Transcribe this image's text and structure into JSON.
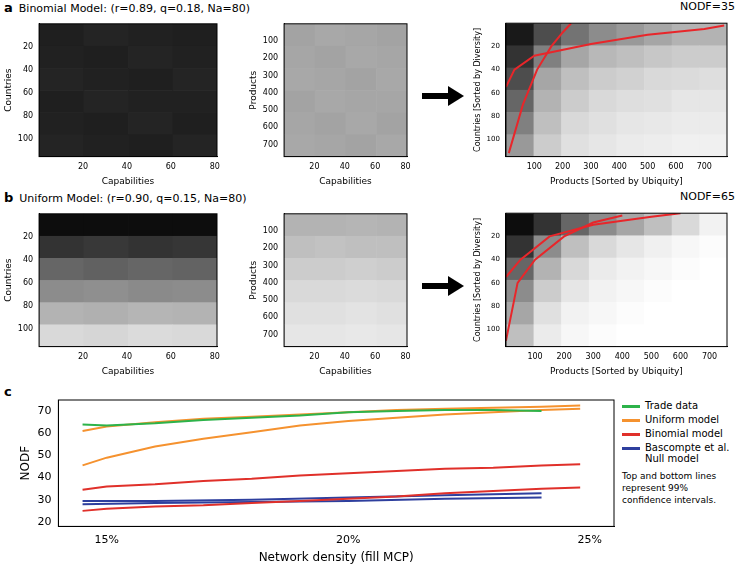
{
  "chart_data": [
    {
      "type": "heatmap",
      "panel_label": "a",
      "title": "Binomial Model: (r=0.89, q=0.18, Na=80)",
      "xlabel": "Capabilities",
      "ylabel": "Countries",
      "xlim": [
        0,
        81
      ],
      "xticks": [
        20,
        40,
        60,
        80
      ],
      "ylim": [
        0,
        115
      ],
      "yticks": [
        20,
        40,
        60,
        80,
        100
      ],
      "cells": [
        [
          0.88,
          0.86,
          0.87,
          0.88
        ],
        [
          0.87,
          0.88,
          0.86,
          0.87
        ],
        [
          0.86,
          0.87,
          0.88,
          0.86
        ],
        [
          0.88,
          0.86,
          0.87,
          0.87
        ],
        [
          0.87,
          0.88,
          0.86,
          0.88
        ],
        [
          0.86,
          0.87,
          0.88,
          0.86
        ]
      ]
    },
    {
      "type": "heatmap",
      "xlabel": "Capabilities",
      "ylabel": "Products",
      "xlim": [
        0,
        81
      ],
      "xticks": [
        20,
        40,
        60,
        80
      ],
      "ylim": [
        0,
        770
      ],
      "yticks": [
        100,
        200,
        300,
        400,
        500,
        600,
        700
      ],
      "cells": [
        [
          0.36,
          0.34,
          0.35,
          0.36
        ],
        [
          0.35,
          0.36,
          0.34,
          0.35
        ],
        [
          0.34,
          0.35,
          0.36,
          0.34
        ],
        [
          0.36,
          0.34,
          0.35,
          0.35
        ],
        [
          0.35,
          0.36,
          0.34,
          0.36
        ],
        [
          0.34,
          0.35,
          0.36,
          0.34
        ]
      ]
    },
    {
      "type": "heatmap",
      "title": "NODF=35",
      "xlabel": "Products [Sorted by Ubiquity]",
      "ylabel": "Countries [Sorted by Diversity]",
      "xlim": [
        0,
        780
      ],
      "xticks": [
        100,
        200,
        300,
        400,
        500,
        600,
        700
      ],
      "ylim": [
        0,
        115
      ],
      "yticks": [
        20,
        40,
        60,
        80,
        100
      ],
      "cells": [
        [
          0.9,
          0.7,
          0.55,
          0.45,
          0.4,
          0.35,
          0.3,
          0.3
        ],
        [
          0.8,
          0.5,
          0.35,
          0.28,
          0.25,
          0.22,
          0.2,
          0.2
        ],
        [
          0.7,
          0.35,
          0.25,
          0.2,
          0.18,
          0.15,
          0.14,
          0.13
        ],
        [
          0.6,
          0.3,
          0.2,
          0.15,
          0.13,
          0.12,
          0.1,
          0.1
        ],
        [
          0.5,
          0.25,
          0.15,
          0.12,
          0.1,
          0.09,
          0.08,
          0.08
        ],
        [
          0.4,
          0.2,
          0.12,
          0.1,
          0.08,
          0.07,
          0.06,
          0.06
        ]
      ],
      "series": [
        {
          "color": "#e8262a",
          "x": [
            10,
            60,
            110,
            160,
            200,
            230
          ],
          "values": [
            112,
            70,
            40,
            20,
            8,
            0
          ]
        },
        {
          "color": "#e8262a",
          "x": [
            0,
            30,
            100,
            300,
            500,
            700,
            770
          ],
          "values": [
            55,
            40,
            28,
            18,
            10,
            5,
            2
          ]
        }
      ]
    },
    {
      "type": "heatmap",
      "panel_label": "b",
      "title": "Uniform Model: (r=0.90, q=0.15, Na=80)",
      "xlabel": "Capabilities",
      "ylabel": "Countries",
      "xlim": [
        0,
        81
      ],
      "xticks": [
        20,
        40,
        60,
        80
      ],
      "ylim": [
        0,
        115
      ],
      "yticks": [
        20,
        40,
        60,
        80,
        100
      ],
      "cells": [
        [
          0.95,
          0.95,
          0.95,
          0.95
        ],
        [
          0.8,
          0.78,
          0.8,
          0.79
        ],
        [
          0.6,
          0.62,
          0.6,
          0.61
        ],
        [
          0.45,
          0.44,
          0.46,
          0.45
        ],
        [
          0.3,
          0.31,
          0.29,
          0.3
        ],
        [
          0.15,
          0.16,
          0.14,
          0.15
        ]
      ]
    },
    {
      "type": "heatmap",
      "xlabel": "Capabilities",
      "ylabel": "Products",
      "xlim": [
        0,
        81
      ],
      "xticks": [
        20,
        40,
        60,
        80
      ],
      "ylim": [
        0,
        770
      ],
      "yticks": [
        100,
        200,
        300,
        400,
        500,
        600,
        700
      ],
      "cells": [
        [
          0.3,
          0.3,
          0.29,
          0.3
        ],
        [
          0.25,
          0.24,
          0.25,
          0.25
        ],
        [
          0.2,
          0.2,
          0.19,
          0.2
        ],
        [
          0.15,
          0.15,
          0.14,
          0.15
        ],
        [
          0.12,
          0.12,
          0.11,
          0.12
        ],
        [
          0.1,
          0.1,
          0.09,
          0.1
        ]
      ]
    },
    {
      "type": "heatmap",
      "title": "NODF=65",
      "xlabel": "Products [Sorted by Ubiquity]",
      "ylabel": "Countries [Sorted by Diversity]",
      "xlim": [
        0,
        760
      ],
      "xticks": [
        100,
        200,
        300,
        400,
        500,
        600,
        700
      ],
      "ylim": [
        0,
        115
      ],
      "yticks": [
        20,
        40,
        60,
        80,
        100
      ],
      "cells": [
        [
          0.95,
          0.8,
          0.6,
          0.45,
          0.35,
          0.25,
          0.15,
          0.05
        ],
        [
          0.8,
          0.45,
          0.25,
          0.15,
          0.1,
          0.06,
          0.03,
          0.01
        ],
        [
          0.6,
          0.3,
          0.15,
          0.08,
          0.05,
          0.03,
          0.01,
          0
        ],
        [
          0.45,
          0.2,
          0.1,
          0.05,
          0.03,
          0.01,
          0,
          0
        ],
        [
          0.35,
          0.12,
          0.05,
          0.03,
          0.01,
          0,
          0,
          0
        ],
        [
          0.25,
          0.08,
          0.03,
          0.01,
          0,
          0,
          0,
          0
        ]
      ],
      "series": [
        {
          "color": "#e8262a",
          "x": [
            0,
            40,
            100,
            200,
            300,
            400
          ],
          "values": [
            110,
            60,
            40,
            20,
            8,
            2
          ]
        },
        {
          "color": "#e8262a",
          "x": [
            0,
            50,
            150,
            300,
            500,
            600
          ],
          "values": [
            55,
            40,
            20,
            10,
            3,
            0
          ]
        }
      ]
    },
    {
      "type": "line",
      "panel_label": "c",
      "xlabel": "Network density (fill MCP)",
      "ylabel": "NODF",
      "xlim": [
        14,
        25.5
      ],
      "xticks": [
        {
          "value": 15,
          "label": "15%"
        },
        {
          "value": 20,
          "label": "20%"
        },
        {
          "value": 25,
          "label": "25%"
        }
      ],
      "ylim": [
        18,
        75
      ],
      "yticks": [
        20,
        30,
        40,
        50,
        60,
        70
      ],
      "grid": false,
      "series": [
        {
          "name": "Trade data",
          "color": "#2db34a",
          "x": [
            14.5,
            15,
            16,
            17,
            18,
            19,
            20,
            21,
            22,
            23,
            24
          ],
          "values": [
            64,
            63.5,
            64.5,
            66,
            67,
            68,
            69.5,
            70,
            70.5,
            70.5,
            70
          ]
        },
        {
          "name": "Uniform model",
          "color": "#f5922f",
          "x": [
            14.5,
            15,
            16,
            17,
            18,
            19,
            20,
            21,
            22,
            23,
            24,
            24.8
          ],
          "values": [
            61,
            63,
            65,
            66.5,
            67.5,
            68.5,
            69.5,
            70.5,
            71,
            71.5,
            72,
            72.5
          ]
        },
        {
          "name": "Uniform model",
          "color": "#f5922f",
          "x": [
            14.5,
            15,
            16,
            17,
            18,
            19,
            20,
            21,
            22,
            23,
            24,
            24.8
          ],
          "values": [
            45.5,
            49,
            54,
            57.5,
            60.5,
            63.5,
            65.5,
            67,
            68.5,
            69.5,
            70.5,
            71
          ]
        },
        {
          "name": "Binomial model",
          "color": "#e0302a",
          "x": [
            14.5,
            15,
            16,
            17,
            18,
            19,
            20,
            21,
            22,
            23,
            24,
            24.8
          ],
          "values": [
            34.5,
            36,
            37,
            38.5,
            39.5,
            41,
            42,
            43,
            44,
            44.5,
            45.5,
            46
          ]
        },
        {
          "name": "Binomial model",
          "color": "#e0302a",
          "x": [
            14.5,
            15,
            16,
            17,
            18,
            19,
            20,
            21,
            22,
            23,
            24,
            24.8
          ],
          "values": [
            25,
            26,
            27,
            27.5,
            28.5,
            29.5,
            30.5,
            31.5,
            33,
            34,
            35,
            35.5
          ]
        },
        {
          "name": "Bascompte et al. Null model",
          "color": "#2e3f9e",
          "x": [
            14.5,
            16,
            18,
            20,
            22,
            24
          ],
          "values": [
            29.5,
            29.5,
            30,
            31,
            32,
            33
          ]
        },
        {
          "name": "Bascompte et al. Null model",
          "color": "#2e3f9e",
          "x": [
            14.5,
            16,
            18,
            20,
            22,
            24
          ],
          "values": [
            28,
            28.5,
            29,
            29.5,
            30.5,
            31
          ]
        }
      ],
      "annotations": [
        "Top and bottom lines represent 99% confidence intervals."
      ]
    }
  ]
}
